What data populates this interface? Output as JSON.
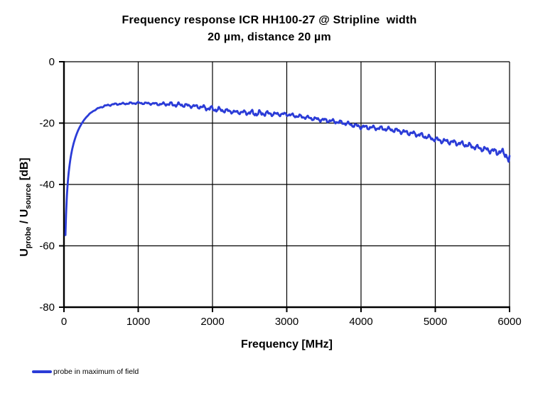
{
  "title": {
    "line1": "Frequency response ICR HH100-27 @ Stripline  width",
    "line2": "20 µm, distance 20 µm"
  },
  "axes": {
    "x": {
      "label": "Frequency [MHz]",
      "tick_labels": [
        "0",
        "1000",
        "2000",
        "3000",
        "4000",
        "5000",
        "6000"
      ]
    },
    "y": {
      "label_parts": {
        "u1": "U",
        "sub1": "probe",
        "mid": " / U",
        "sub2": "source",
        "end": " [dB]"
      },
      "tick_labels": [
        "0",
        "-20",
        "-40",
        "-60",
        "-80"
      ]
    }
  },
  "legend": {
    "label": "probe in maximum of field"
  },
  "colors": {
    "series": "#2b3cd7",
    "axis": "#000000",
    "grid": "#000000",
    "background": "#ffffff"
  },
  "chart_data": {
    "type": "line",
    "title": "Frequency response ICR HH100-27 @ Stripline width 20 µm, distance 20 µm",
    "xlabel": "Frequency [MHz]",
    "ylabel": "Uprobe / Usource [dB]",
    "xlim": [
      0,
      6000
    ],
    "ylim": [
      -80,
      0
    ],
    "x_ticks": [
      0,
      1000,
      2000,
      3000,
      4000,
      5000,
      6000
    ],
    "y_ticks": [
      0,
      -20,
      -40,
      -60,
      -80
    ],
    "grid": true,
    "legend_position": "bottom-left",
    "series": [
      {
        "name": "probe in maximum of field",
        "color": "#2b3cd7",
        "points_MHz_dB": [
          [
            20,
            -56.5
          ],
          [
            24,
            -53
          ],
          [
            28,
            -50
          ],
          [
            33,
            -47
          ],
          [
            40,
            -43.5
          ],
          [
            48,
            -40.5
          ],
          [
            56,
            -38
          ],
          [
            65,
            -35.8
          ],
          [
            75,
            -33.8
          ],
          [
            85,
            -32
          ],
          [
            95,
            -30.5
          ],
          [
            110,
            -28.6
          ],
          [
            130,
            -26.6
          ],
          [
            150,
            -25
          ],
          [
            170,
            -23.6
          ],
          [
            190,
            -22.4
          ],
          [
            210,
            -21.4
          ],
          [
            240,
            -20.1
          ],
          [
            270,
            -19
          ],
          [
            300,
            -18.1
          ],
          [
            340,
            -17.1
          ],
          [
            380,
            -16.3
          ],
          [
            420,
            -15.7
          ],
          [
            460,
            -15.2
          ],
          [
            500,
            -14.8
          ],
          [
            550,
            -14.4
          ],
          [
            600,
            -14.15
          ],
          [
            650,
            -13.95
          ],
          [
            700,
            -13.8
          ],
          [
            750,
            -13.75
          ],
          [
            800,
            -13.7
          ],
          [
            850,
            -13.6
          ],
          [
            900,
            -13.55
          ],
          [
            950,
            -13.5
          ],
          [
            1000,
            -13.45
          ],
          [
            1050,
            -13.5
          ],
          [
            1100,
            -13.55
          ],
          [
            1150,
            -13.6
          ],
          [
            1200,
            -13.65
          ],
          [
            1250,
            -13.75
          ],
          [
            1300,
            -13.85
          ],
          [
            1350,
            -13.8
          ],
          [
            1400,
            -13.75
          ],
          [
            1450,
            -13.9
          ],
          [
            1500,
            -14
          ],
          [
            1550,
            -14.05
          ],
          [
            1600,
            -14.1
          ],
          [
            1650,
            -14.25
          ],
          [
            1700,
            -14.4
          ],
          [
            1750,
            -14.5
          ],
          [
            1800,
            -14.6
          ],
          [
            1850,
            -14.8
          ],
          [
            1900,
            -15
          ],
          [
            1950,
            -15.2
          ],
          [
            2000,
            -15.4
          ],
          [
            2100,
            -15.7
          ],
          [
            2200,
            -16
          ],
          [
            2300,
            -16.4
          ],
          [
            2400,
            -16.5
          ],
          [
            2500,
            -16.6
          ],
          [
            2600,
            -16.9
          ],
          [
            2700,
            -16.8
          ],
          [
            2800,
            -17
          ],
          [
            2900,
            -17.1
          ],
          [
            3000,
            -17.1
          ],
          [
            3100,
            -17.6
          ],
          [
            3200,
            -17.9
          ],
          [
            3300,
            -18.3
          ],
          [
            3400,
            -18.7
          ],
          [
            3500,
            -19
          ],
          [
            3600,
            -19.3
          ],
          [
            3700,
            -19.7
          ],
          [
            3800,
            -20.1
          ],
          [
            3900,
            -20.7
          ],
          [
            4000,
            -21.2
          ],
          [
            4100,
            -21.4
          ],
          [
            4200,
            -21.6
          ],
          [
            4300,
            -21.8
          ],
          [
            4400,
            -22.1
          ],
          [
            4500,
            -22.5
          ],
          [
            4600,
            -23
          ],
          [
            4700,
            -23.4
          ],
          [
            4800,
            -23.9
          ],
          [
            4900,
            -24.6
          ],
          [
            5000,
            -25.3
          ],
          [
            5100,
            -25.8
          ],
          [
            5200,
            -26.1
          ],
          [
            5300,
            -26.5
          ],
          [
            5400,
            -27
          ],
          [
            5500,
            -27.6
          ],
          [
            5600,
            -28.2
          ],
          [
            5700,
            -28.7
          ],
          [
            5800,
            -29.2
          ],
          [
            5900,
            -29.6
          ],
          [
            5950,
            -30
          ],
          [
            5975,
            -31.3
          ],
          [
            5990,
            -32.6
          ],
          [
            6000,
            -31.8
          ]
        ]
      }
    ]
  }
}
